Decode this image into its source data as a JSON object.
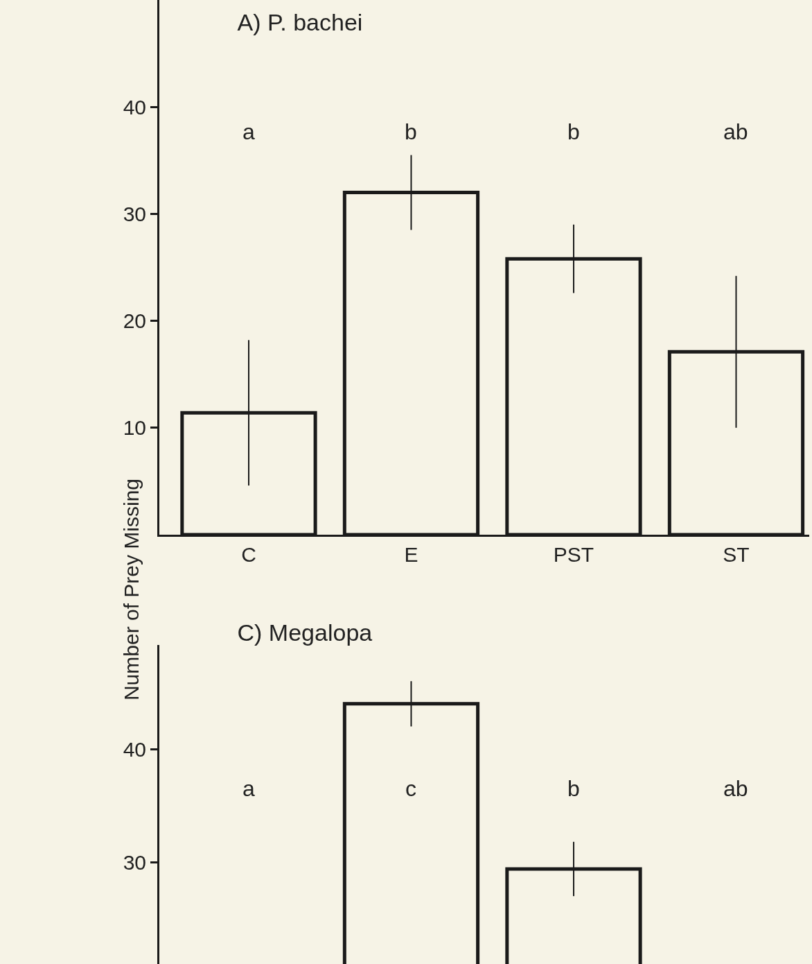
{
  "chart_data": [
    {
      "type": "bar",
      "title": "A) P. bachei",
      "ylabel": "Number of Prey Missing",
      "categories": [
        "C",
        "E",
        "PST",
        "ST"
      ],
      "values": [
        11.4,
        32,
        25.8,
        17.1
      ],
      "errors": [
        6.8,
        3.5,
        3.2,
        7.1
      ],
      "color": "#f6f3e6",
      "ylim": [
        0,
        50
      ],
      "yticks": [
        10,
        20,
        30,
        40
      ],
      "grid": false,
      "annotations": [
        "a",
        "b",
        "b",
        "ab"
      ]
    },
    {
      "type": "bar",
      "title": "C) Megalopa",
      "categories": [
        null,
        null,
        null,
        null
      ],
      "values": [
        null,
        44,
        29.4,
        null
      ],
      "errors": [
        null,
        2,
        2.4,
        null
      ],
      "color": "#f6f3e6",
      "ylim": [
        21,
        49.2
      ],
      "yticks": [
        30,
        40
      ],
      "grid": false,
      "tick_labels": "y",
      "annotations": [
        "a",
        "c",
        "b",
        "ab"
      ]
    }
  ]
}
